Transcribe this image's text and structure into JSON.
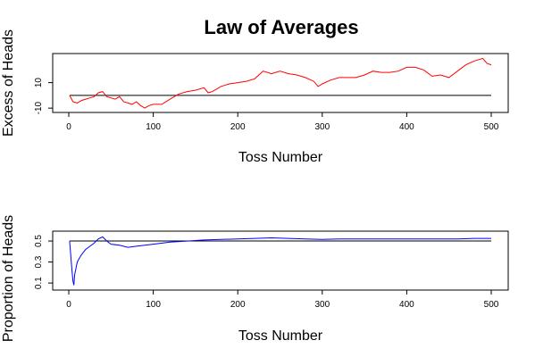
{
  "title": "Law of Averages",
  "chart_data": [
    {
      "type": "line",
      "xlabel": "Toss Number",
      "ylabel": "Excess of Heads",
      "xlim": [
        0,
        500
      ],
      "ylim": [
        -12,
        30
      ],
      "xticks": [
        0,
        100,
        200,
        300,
        400,
        500
      ],
      "yticks": [
        -10,
        10
      ],
      "reference_line": 0,
      "series_color": "#ff0000",
      "series": [
        {
          "x": [
            1,
            5,
            10,
            15,
            20,
            25,
            30,
            35,
            40,
            45,
            50,
            55,
            60,
            65,
            70,
            75,
            80,
            85,
            90,
            95,
            100,
            110,
            120,
            130,
            140,
            150,
            160,
            165,
            170,
            180,
            190,
            200,
            210,
            220,
            230,
            240,
            250,
            260,
            270,
            280,
            290,
            295,
            300,
            310,
            320,
            330,
            340,
            350,
            360,
            370,
            380,
            390,
            400,
            410,
            420,
            430,
            440,
            450,
            460,
            470,
            480,
            490,
            495,
            500
          ],
          "values": [
            0,
            -5,
            -6,
            -4,
            -3,
            -2,
            -1,
            2,
            3,
            -1,
            -2,
            -3,
            -1,
            -5,
            -6,
            -7,
            -5,
            -8,
            -10,
            -8,
            -7,
            -7,
            -3,
            1,
            3,
            4,
            6,
            2,
            3,
            7,
            9,
            10,
            11,
            13,
            19,
            17,
            19,
            17,
            16,
            14,
            11,
            7,
            9,
            12,
            14,
            14,
            14,
            16,
            19,
            18,
            18,
            19,
            22,
            22,
            20,
            15,
            16,
            14,
            19,
            24,
            27,
            29,
            25,
            24
          ]
        }
      ]
    },
    {
      "type": "line",
      "xlabel": "Toss Number",
      "ylabel": "Proportion of Heads",
      "xlim": [
        0,
        500
      ],
      "ylim": [
        0.05,
        0.56
      ],
      "xticks": [
        0,
        100,
        200,
        300,
        400,
        500
      ],
      "yticks": [
        0.1,
        0.3,
        0.5
      ],
      "reference_line": 0.5,
      "series_color": "#0000ff",
      "series": [
        {
          "x": [
            1,
            2,
            3,
            4,
            5,
            6,
            7,
            8,
            9,
            10,
            12,
            15,
            18,
            20,
            25,
            30,
            35,
            40,
            45,
            50,
            60,
            70,
            80,
            90,
            100,
            120,
            140,
            160,
            180,
            200,
            220,
            240,
            260,
            280,
            300,
            320,
            340,
            360,
            380,
            400,
            420,
            440,
            460,
            480,
            500
          ],
          "values": [
            0.5,
            0.4,
            0.3,
            0.2,
            0.12,
            0.08,
            0.18,
            0.22,
            0.26,
            0.3,
            0.33,
            0.37,
            0.4,
            0.42,
            0.45,
            0.48,
            0.52,
            0.54,
            0.5,
            0.47,
            0.46,
            0.44,
            0.45,
            0.46,
            0.47,
            0.49,
            0.5,
            0.51,
            0.515,
            0.52,
            0.525,
            0.53,
            0.525,
            0.52,
            0.515,
            0.52,
            0.52,
            0.52,
            0.52,
            0.52,
            0.52,
            0.52,
            0.52,
            0.525,
            0.525
          ]
        }
      ]
    }
  ]
}
